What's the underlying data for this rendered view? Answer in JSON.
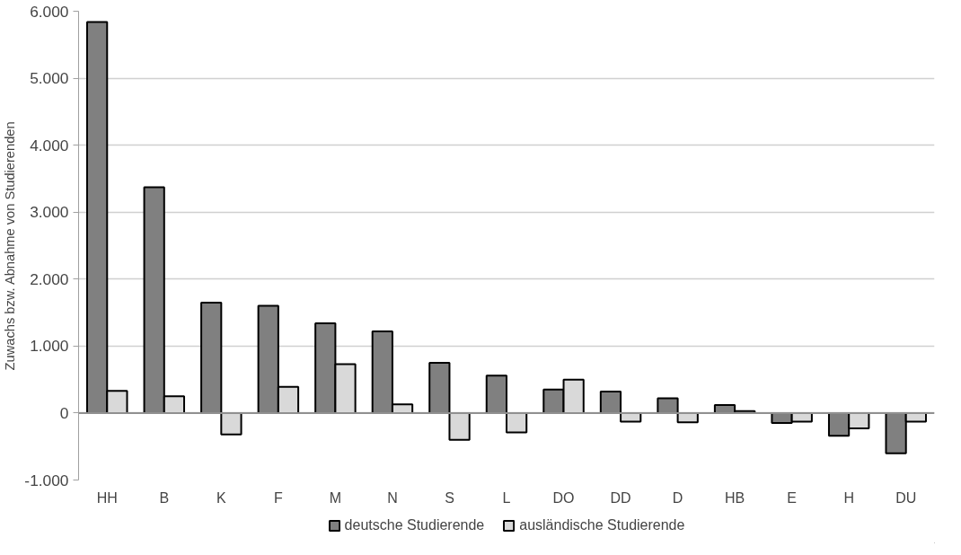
{
  "chart_data": {
    "type": "bar",
    "ylabel": "Zuwachs bzw. Abnahme von Studierenden",
    "categories": [
      "HH",
      "B",
      "K",
      "F",
      "M",
      "N",
      "S",
      "L",
      "DO",
      "DD",
      "D",
      "HB",
      "E",
      "H",
      "DU"
    ],
    "series": [
      {
        "name": "deutsche Studierende",
        "color": "#808080",
        "values": [
          5840,
          3370,
          1650,
          1600,
          1340,
          1220,
          750,
          560,
          350,
          320,
          220,
          120,
          -150,
          -340,
          -600
        ]
      },
      {
        "name": "ausländische Studierende",
        "color": "#d9d9d9",
        "values": [
          330,
          250,
          -320,
          390,
          730,
          130,
          -400,
          -290,
          500,
          -130,
          -140,
          30,
          -130,
          -230,
          -130
        ]
      }
    ],
    "ylim": [
      -1000,
      6000
    ],
    "yticks": [
      {
        "value": -1000,
        "label": "-1.000"
      },
      0,
      {
        "value": 1000,
        "label": "1.000"
      },
      {
        "value": 2000,
        "label": "2.000"
      },
      {
        "value": 3000,
        "label": "3.000"
      },
      {
        "value": 4000,
        "label": "4.000"
      },
      {
        "value": 5000,
        "label": "5.000"
      },
      {
        "value": 6000,
        "label": "6.000"
      }
    ],
    "grid": "y",
    "legend": "bottom"
  }
}
